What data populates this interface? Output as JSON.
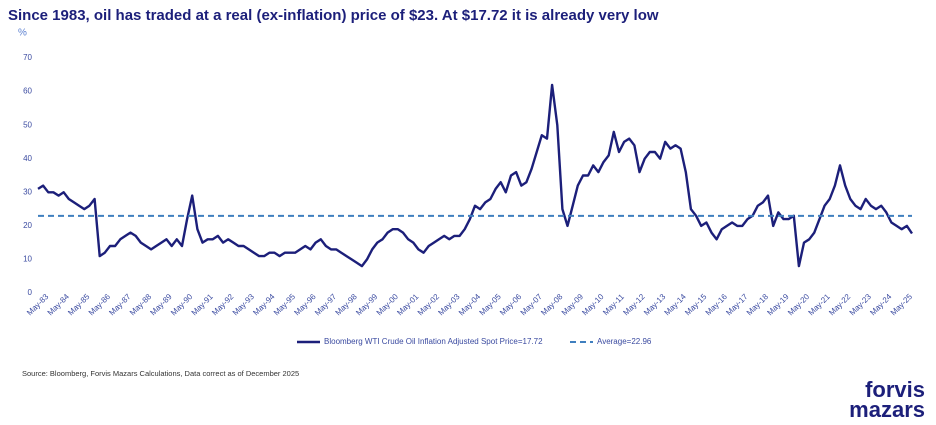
{
  "chart_data": {
    "type": "line",
    "title": "Since 1983, oil has traded at a real (ex-inflation) price of $23. At $17.72 it is already very low",
    "y_label": "%",
    "source": "Source: Bloomberg, Forvis Mazars Calculations, Data correct as of December 2025",
    "logo": [
      "forvis",
      "mazars"
    ],
    "categories": [
      "May-83",
      null,
      null,
      null,
      "May-84",
      null,
      null,
      null,
      "May-85",
      null,
      null,
      null,
      "May-86",
      null,
      null,
      null,
      "May-87",
      null,
      null,
      null,
      "May-88",
      null,
      null,
      null,
      "May-89",
      null,
      null,
      null,
      "May-90",
      null,
      null,
      null,
      "May-91",
      null,
      null,
      null,
      "May-92",
      null,
      null,
      null,
      "May-93",
      null,
      null,
      null,
      "May-94",
      null,
      null,
      null,
      "May-95",
      null,
      null,
      null,
      "May-96",
      null,
      null,
      null,
      "May-97",
      null,
      null,
      null,
      "May-98",
      null,
      null,
      null,
      "May-99",
      null,
      null,
      null,
      "May-00",
      null,
      null,
      null,
      "May-01",
      null,
      null,
      null,
      "May-02",
      null,
      null,
      null,
      "May-03",
      null,
      null,
      null,
      "May-04",
      null,
      null,
      null,
      "May-05",
      null,
      null,
      null,
      "May-06",
      null,
      null,
      null,
      "May-07",
      null,
      null,
      null,
      "May-08",
      null,
      null,
      null,
      "May-09",
      null,
      null,
      null,
      "May-10",
      null,
      null,
      null,
      "May-11",
      null,
      null,
      null,
      "May-12",
      null,
      null,
      null,
      "May-13",
      null,
      null,
      null,
      "May-14",
      null,
      null,
      null,
      "May-15",
      null,
      null,
      null,
      "May-16",
      null,
      null,
      null,
      "May-17",
      null,
      null,
      null,
      "May-18",
      null,
      null,
      null,
      "May-19",
      null,
      null,
      null,
      "May-20",
      null,
      null,
      null,
      "May-21",
      null,
      null,
      null,
      "May-22",
      null,
      null,
      null,
      "May-23",
      null,
      null,
      null,
      "May-24",
      null,
      null,
      null,
      "May-25",
      null,
      null
    ],
    "series": [
      {
        "name": "Bloomberg WTI Crude Oil Inflation Adjusted Spot Price=17.72",
        "color": "#1c1f7a",
        "values": [
          31,
          32,
          30,
          30,
          29,
          30,
          28,
          27,
          26,
          25,
          26,
          28,
          11,
          12,
          14,
          14,
          16,
          17,
          18,
          17,
          15,
          14,
          13,
          14,
          15,
          16,
          14,
          16,
          14,
          22,
          29,
          19,
          15,
          16,
          16,
          17,
          15,
          16,
          15,
          14,
          14,
          13,
          12,
          11,
          11,
          12,
          12,
          11,
          12,
          12,
          12,
          13,
          14,
          13,
          15,
          16,
          14,
          13,
          13,
          12,
          11,
          10,
          9,
          8,
          10,
          13,
          15,
          16,
          18,
          19,
          19,
          18,
          16,
          15,
          13,
          12,
          14,
          15,
          16,
          17,
          16,
          17,
          17,
          19,
          22,
          26,
          25,
          27,
          28,
          31,
          33,
          30,
          35,
          36,
          32,
          33,
          37,
          42,
          47,
          46,
          62,
          50,
          25,
          20,
          26,
          32,
          35,
          35,
          38,
          36,
          39,
          41,
          48,
          42,
          45,
          46,
          44,
          36,
          40,
          42,
          42,
          40,
          45,
          43,
          44,
          43,
          36,
          25,
          23,
          20,
          21,
          18,
          16,
          19,
          20,
          21,
          20,
          20,
          22,
          23,
          26,
          27,
          29,
          20,
          24,
          22,
          22,
          23,
          8,
          15,
          16,
          18,
          22,
          26,
          28,
          32,
          38,
          32,
          28,
          26,
          25,
          28,
          26,
          25,
          26,
          24,
          21,
          20,
          19,
          20,
          17.72
        ]
      }
    ],
    "average": {
      "name": "Average=22.96",
      "value": 22.96,
      "color": "#3f7fbf"
    },
    "ylim": [
      0,
      70
    ],
    "yticks": [
      0,
      10,
      20,
      30,
      40,
      50,
      60,
      70
    ],
    "grid": false
  }
}
